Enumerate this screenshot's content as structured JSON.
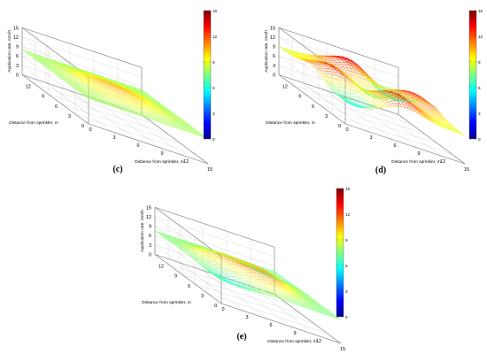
{
  "chart_data": [
    {
      "type": "surface",
      "panel_label": "(c)",
      "zlabel": "Application rate, mm/h",
      "xlabel": "Distance from sprinkler, m",
      "ylabel": "Distance from sprinkler, m",
      "z_ticks": [
        "15",
        "12",
        "9",
        "6",
        "3",
        "0"
      ],
      "x_ticks": [
        "0",
        "3",
        "6",
        "9",
        "12",
        "15"
      ],
      "y_ticks": [
        "0",
        "3",
        "6",
        "9",
        "12"
      ],
      "colorbar_ticks": [
        "15",
        "12",
        "9",
        "6",
        "3",
        "0"
      ],
      "zlim": [
        0,
        15
      ],
      "xlim": [
        0,
        15
      ],
      "ylim": [
        0,
        15
      ],
      "colormap": "jet",
      "surface": {
        "base_level": 8,
        "peaks": [
          {
            "x": 7.5,
            "y": 7.5,
            "amplitude": 2.5,
            "spread": 3.5
          }
        ],
        "dips": [],
        "edge_flatness": 1
      }
    },
    {
      "type": "surface",
      "panel_label": "(d)",
      "zlabel": "Application rate, mm/h",
      "xlabel": "Distance from sprinkler, m",
      "ylabel": "Distance from sprinkler, m",
      "z_ticks": [
        "15",
        "12",
        "9",
        "6",
        "3",
        "0"
      ],
      "x_ticks": [
        "0",
        "3",
        "6",
        "9",
        "12",
        "15"
      ],
      "y_ticks": [
        "0",
        "3",
        "6",
        "9",
        "12"
      ],
      "colorbar_ticks": [
        "15",
        "12",
        "9",
        "6",
        "3",
        "0"
      ],
      "zlim": [
        0,
        15
      ],
      "xlim": [
        0,
        15
      ],
      "ylim": [
        0,
        15
      ],
      "colormap": "jet",
      "surface": {
        "base_level": 9,
        "peaks": [
          {
            "x": 7.5,
            "y": 2.5,
            "amplitude": 5,
            "spread": 2.2
          },
          {
            "x": 2.5,
            "y": 7.5,
            "amplitude": 4,
            "spread": 2.2
          },
          {
            "x": 12.5,
            "y": 7.5,
            "amplitude": 4,
            "spread": 2.2
          },
          {
            "x": 7.5,
            "y": 12.5,
            "amplitude": 5,
            "spread": 2.2
          }
        ],
        "dips": [
          {
            "x": 7.5,
            "y": 7.5,
            "amplitude": 3,
            "spread": 2.0
          },
          {
            "x": 2.5,
            "y": 2.5,
            "amplitude": 4,
            "spread": 2.0
          },
          {
            "x": 12.5,
            "y": 12.5,
            "amplitude": 4,
            "spread": 2.0
          }
        ],
        "edge_flatness": 0
      }
    },
    {
      "type": "surface",
      "panel_label": "(e)",
      "zlabel": "Application rate, mm/h",
      "xlabel": "Distance from sprinkler, m",
      "ylabel": "Distance from sprinkler, m",
      "z_ticks": [
        "15",
        "12",
        "9",
        "6",
        "3",
        "0"
      ],
      "x_ticks": [
        "0",
        "3",
        "6",
        "9",
        "12",
        "15"
      ],
      "y_ticks": [
        "0",
        "3",
        "6",
        "9",
        "12"
      ],
      "colorbar_ticks": [
        "15",
        "12",
        "9",
        "6",
        "3",
        "0"
      ],
      "zlim": [
        0,
        15
      ],
      "xlim": [
        0,
        15
      ],
      "ylim": [
        0,
        15
      ],
      "colormap": "jet",
      "surface": {
        "base_level": 7.5,
        "peaks": [
          {
            "x": 7.5,
            "y": 5,
            "amplitude": 3.5,
            "spread": 2.5
          },
          {
            "x": 5,
            "y": 9,
            "amplitude": 2.5,
            "spread": 2.5
          },
          {
            "x": 10,
            "y": 9,
            "amplitude": 2.5,
            "spread": 2.5
          }
        ],
        "dips": [
          {
            "x": 7.5,
            "y": 7.5,
            "amplitude": 1.5,
            "spread": 1.6
          },
          {
            "x": 3,
            "y": 3,
            "amplitude": 2,
            "spread": 2.0
          },
          {
            "x": 12,
            "y": 12,
            "amplitude": 1.5,
            "spread": 2.0
          }
        ],
        "edge_flatness": 0.5
      }
    }
  ]
}
